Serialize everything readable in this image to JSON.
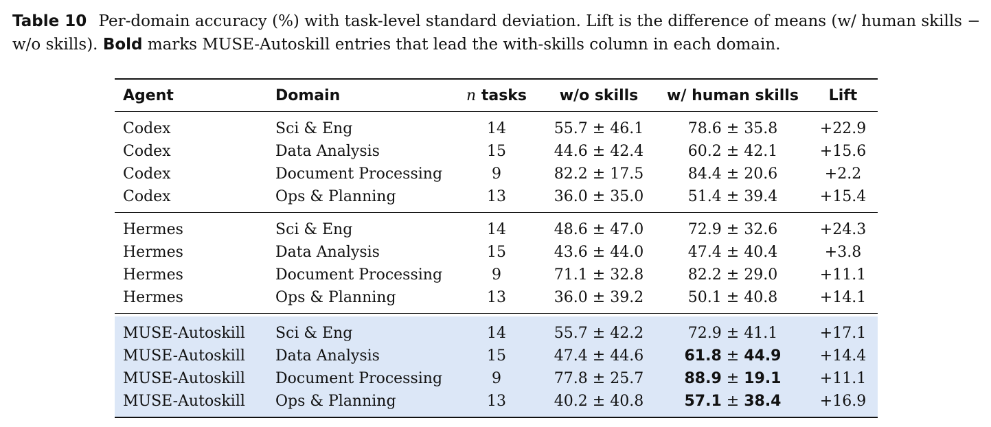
{
  "caption": {
    "label": "Table 10",
    "text_1": "Per-domain accuracy (%) with task-level standard deviation. Lift is the difference of means (w/ human skills − w/o skills).",
    "bold_word": "Bold",
    "text_2": "marks MUSE-Autoskill entries that lead the with-skills column in each domain."
  },
  "table": {
    "headers": {
      "agent": "Agent",
      "domain": "Domain",
      "n_symbol": "n",
      "n_rest": "tasks",
      "wo": "w/o skills",
      "w": "w/ human skills",
      "lift": "Lift"
    },
    "groups": [
      {
        "agent": "Codex",
        "highlight": false,
        "rows": [
          {
            "agent": "Codex",
            "domain": "Sci & Eng",
            "n": "14",
            "wo_mean": "55.7",
            "wo_sd": "46.1",
            "w_mean": "78.6",
            "w_sd": "35.8",
            "w_bold": false,
            "lift": "+22.9"
          },
          {
            "agent": "Codex",
            "domain": "Data Analysis",
            "n": "15",
            "wo_mean": "44.6",
            "wo_sd": "42.4",
            "w_mean": "60.2",
            "w_sd": "42.1",
            "w_bold": false,
            "lift": "+15.6"
          },
          {
            "agent": "Codex",
            "domain": "Document Processing",
            "n": "9",
            "wo_mean": "82.2",
            "wo_sd": "17.5",
            "w_mean": "84.4",
            "w_sd": "20.6",
            "w_bold": false,
            "lift": "+2.2"
          },
          {
            "agent": "Codex",
            "domain": "Ops & Planning",
            "n": "13",
            "wo_mean": "36.0",
            "wo_sd": "35.0",
            "w_mean": "51.4",
            "w_sd": "39.4",
            "w_bold": false,
            "lift": "+15.4"
          }
        ]
      },
      {
        "agent": "Hermes",
        "highlight": false,
        "rows": [
          {
            "agent": "Hermes",
            "domain": "Sci & Eng",
            "n": "14",
            "wo_mean": "48.6",
            "wo_sd": "47.0",
            "w_mean": "72.9",
            "w_sd": "32.6",
            "w_bold": false,
            "lift": "+24.3"
          },
          {
            "agent": "Hermes",
            "domain": "Data Analysis",
            "n": "15",
            "wo_mean": "43.6",
            "wo_sd": "44.0",
            "w_mean": "47.4",
            "w_sd": "40.4",
            "w_bold": false,
            "lift": "+3.8"
          },
          {
            "agent": "Hermes",
            "domain": "Document Processing",
            "n": "9",
            "wo_mean": "71.1",
            "wo_sd": "32.8",
            "w_mean": "82.2",
            "w_sd": "29.0",
            "w_bold": false,
            "lift": "+11.1"
          },
          {
            "agent": "Hermes",
            "domain": "Ops & Planning",
            "n": "13",
            "wo_mean": "36.0",
            "wo_sd": "39.2",
            "w_mean": "50.1",
            "w_sd": "40.8",
            "w_bold": false,
            "lift": "+14.1"
          }
        ]
      },
      {
        "agent": "MUSE-Autoskill",
        "highlight": true,
        "highlight_color": "#dce7f7",
        "rows": [
          {
            "agent": "MUSE-Autoskill",
            "domain": "Sci & Eng",
            "n": "14",
            "wo_mean": "55.7",
            "wo_sd": "42.2",
            "w_mean": "72.9",
            "w_sd": "41.1",
            "w_bold": false,
            "lift": "+17.1"
          },
          {
            "agent": "MUSE-Autoskill",
            "domain": "Data Analysis",
            "n": "15",
            "wo_mean": "47.4",
            "wo_sd": "44.6",
            "w_mean": "61.8",
            "w_sd": "44.9",
            "w_bold": true,
            "lift": "+14.4"
          },
          {
            "agent": "MUSE-Autoskill",
            "domain": "Document Processing",
            "n": "9",
            "wo_mean": "77.8",
            "wo_sd": "25.7",
            "w_mean": "88.9",
            "w_sd": "19.1",
            "w_bold": true,
            "lift": "+11.1"
          },
          {
            "agent": "MUSE-Autoskill",
            "domain": "Ops & Planning",
            "n": "13",
            "wo_mean": "40.2",
            "wo_sd": "40.8",
            "w_mean": "57.1",
            "w_sd": "38.4",
            "w_bold": true,
            "lift": "+16.9"
          }
        ]
      }
    ]
  }
}
